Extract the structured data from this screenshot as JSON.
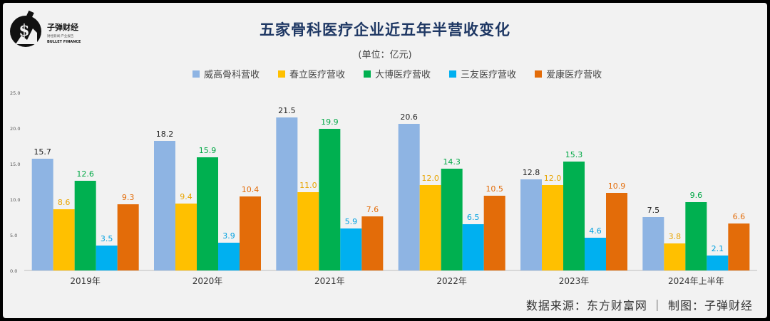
{
  "title": "五家骨科医疗企业近五年半营收变化",
  "unit": "(单位：亿元)",
  "source": "数据来源：东方财富网 ｜ 制图：子弹财经",
  "logo": {
    "name_cn": "子弹财经",
    "tagline_cn": "财经新闻·产业报告",
    "name_en": "BULLET FINANCE"
  },
  "chart_data": {
    "type": "bar",
    "title": "五家骨科医疗企业近五年半营收变化",
    "xlabel": "",
    "ylabel": "",
    "ylim": [
      0,
      25
    ],
    "yticks": [
      "0.0",
      "5.0",
      "10.0",
      "15.0",
      "20.0",
      "25.0"
    ],
    "categories": [
      "2019年",
      "2020年",
      "2021年",
      "2022年",
      "2023年",
      "2024年上半年"
    ],
    "series": [
      {
        "name": "威高骨科营收",
        "color": "#8eb4e3",
        "label_color": "#222222",
        "values": [
          15.7,
          18.2,
          21.5,
          20.6,
          12.8,
          7.5
        ]
      },
      {
        "name": "春立医疗营收",
        "color": "#ffc000",
        "label_color": "#e8a400",
        "values": [
          8.6,
          9.4,
          11.0,
          12.0,
          12.0,
          3.8
        ]
      },
      {
        "name": "大博医疗营收",
        "color": "#00b050",
        "label_color": "#00a845",
        "values": [
          12.6,
          15.9,
          19.9,
          14.3,
          15.3,
          9.6
        ]
      },
      {
        "name": "三友医疗营收",
        "color": "#00b0f0",
        "label_color": "#00a0e0",
        "values": [
          3.5,
          3.9,
          5.9,
          6.5,
          4.6,
          2.1
        ]
      },
      {
        "name": "爱康医疗营收",
        "color": "#e36c09",
        "label_color": "#e36c09",
        "values": [
          9.3,
          10.4,
          7.6,
          10.5,
          10.9,
          6.6
        ]
      }
    ]
  }
}
